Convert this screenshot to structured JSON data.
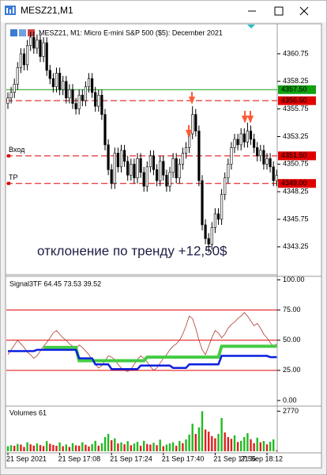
{
  "window": {
    "title": "MESZ21,M1"
  },
  "chart_data": [
    {
      "type": "candlestick",
      "title": "MESZ21, M1:  Micro E-mini S&P 500 ($5): December 2021",
      "annotation": "отклонение по тренду +12,50$",
      "categories": [
        "21 Sep 2021",
        null,
        null,
        null,
        null,
        null,
        null,
        null,
        null,
        null,
        null,
        null,
        null,
        null,
        null,
        null,
        "21 Sep 17:08",
        null,
        null,
        null,
        null,
        null,
        null,
        null,
        null,
        null,
        null,
        null,
        null,
        null,
        null,
        null,
        "21 Sep 17:24",
        null,
        null,
        null,
        null,
        null,
        null,
        null,
        null,
        null,
        null,
        null,
        null,
        null,
        null,
        null,
        "21 Sep 17:40",
        null,
        null,
        null,
        null,
        null,
        null,
        null,
        null,
        null,
        null,
        null,
        null,
        null,
        null,
        null,
        "21 Sep 17:56",
        null,
        null,
        null,
        null,
        null,
        null,
        null,
        null,
        null,
        null,
        null,
        null,
        null,
        null,
        null,
        "21 Sep 18:12",
        null,
        null,
        null
      ],
      "open": [
        4356.25,
        4356.75,
        4357.25,
        4358.0,
        4359.5,
        4360.75,
        4359.75,
        4361.5,
        4362.25,
        4361.25,
        4362.0,
        4360.5,
        4361.75,
        4359.25,
        4358.5,
        4357.75,
        4359.0,
        4357.5,
        4358.25,
        4356.75,
        4357.5,
        4356.25,
        4355.75,
        4357.0,
        4356.5,
        4357.75,
        4358.5,
        4357.25,
        4356.0,
        4357.0,
        4355.25,
        4352.5,
        4350.25,
        4349.0,
        4351.75,
        4350.5,
        4352.0,
        4351.0,
        4349.75,
        4350.75,
        4349.5,
        4351.25,
        4350.0,
        4348.75,
        4350.5,
        4351.5,
        4350.25,
        4349.25,
        4351.0,
        4349.75,
        4348.75,
        4350.0,
        4351.25,
        4349.5,
        4350.75,
        4351.75,
        4352.25,
        4353.5,
        4355.25,
        4353.75,
        4349.25,
        4345.25,
        4344.0,
        4343.5,
        4345.0,
        4346.25,
        4345.75,
        4348.0,
        4349.5,
        4350.75,
        4352.25,
        4353.0,
        4352.5,
        4353.5,
        4352.75,
        4353.75,
        4353.0,
        4352.25,
        4351.5,
        4352.0,
        4350.75,
        4351.25,
        4350.5,
        4349.25
      ],
      "high": [
        4357.25,
        4357.75,
        4358.5,
        4360.0,
        4361.25,
        4361.25,
        4362.0,
        4362.75,
        4362.75,
        4362.5,
        4362.5,
        4362.25,
        4362.25,
        4359.75,
        4359.0,
        4359.5,
        4359.5,
        4358.75,
        4358.75,
        4358.0,
        4358.0,
        4356.75,
        4357.5,
        4357.5,
        4358.25,
        4359.0,
        4359.0,
        4357.75,
        4357.5,
        4357.5,
        4355.75,
        4353.0,
        4350.75,
        4352.25,
        4352.25,
        4352.5,
        4352.5,
        4351.5,
        4351.25,
        4351.25,
        4351.75,
        4351.75,
        4350.5,
        4351.0,
        4352.0,
        4352.0,
        4350.75,
        4351.5,
        4351.5,
        4350.25,
        4350.5,
        4351.75,
        4351.75,
        4351.25,
        4352.25,
        4352.75,
        4354.0,
        4356.0,
        4355.75,
        4354.25,
        4349.75,
        4345.75,
        4344.5,
        4345.5,
        4346.75,
        4346.75,
        4348.5,
        4350.0,
        4351.25,
        4352.75,
        4353.5,
        4353.5,
        4354.0,
        4354.0,
        4354.5,
        4354.25,
        4353.5,
        4352.75,
        4352.5,
        4352.5,
        4351.75,
        4351.75,
        4351.0,
        4350.25
      ],
      "low": [
        4355.75,
        4356.25,
        4356.75,
        4357.5,
        4359.0,
        4359.25,
        4359.25,
        4361.0,
        4360.75,
        4360.75,
        4360.0,
        4360.0,
        4358.75,
        4358.0,
        4357.25,
        4357.25,
        4357.0,
        4357.0,
        4356.25,
        4356.25,
        4355.75,
        4355.25,
        4355.25,
        4356.0,
        4356.0,
        4357.25,
        4356.75,
        4355.5,
        4355.5,
        4354.75,
        4352.0,
        4349.75,
        4348.5,
        4348.5,
        4350.0,
        4350.0,
        4350.5,
        4349.25,
        4349.25,
        4349.0,
        4349.0,
        4349.5,
        4348.25,
        4348.25,
        4350.0,
        4349.75,
        4348.75,
        4348.75,
        4349.25,
        4348.25,
        4348.25,
        4349.5,
        4349.0,
        4349.0,
        4350.25,
        4351.25,
        4351.75,
        4353.0,
        4353.25,
        4348.75,
        4344.75,
        4343.5,
        4342.75,
        4343.0,
        4344.5,
        4345.25,
        4345.25,
        4347.5,
        4349.0,
        4350.25,
        4351.75,
        4352.0,
        4352.0,
        4352.25,
        4352.25,
        4352.5,
        4351.75,
        4351.0,
        4351.0,
        4350.25,
        4350.25,
        4350.0,
        4348.75,
        4348.75
      ],
      "close": [
        4356.75,
        4357.25,
        4358.0,
        4359.5,
        4360.75,
        4359.75,
        4361.5,
        4362.25,
        4361.25,
        4362.0,
        4360.5,
        4361.75,
        4359.25,
        4358.5,
        4357.75,
        4359.0,
        4357.5,
        4358.25,
        4356.75,
        4357.5,
        4356.25,
        4355.75,
        4357.0,
        4356.5,
        4357.75,
        4358.5,
        4357.25,
        4356.0,
        4357.0,
        4355.25,
        4352.5,
        4350.25,
        4349.0,
        4351.75,
        4350.5,
        4352.0,
        4351.0,
        4349.75,
        4350.75,
        4349.5,
        4351.25,
        4350.0,
        4348.75,
        4350.5,
        4351.5,
        4350.25,
        4349.25,
        4351.0,
        4349.75,
        4348.75,
        4350.0,
        4351.25,
        4349.5,
        4350.75,
        4351.75,
        4352.25,
        4353.5,
        4355.25,
        4353.75,
        4349.25,
        4345.25,
        4344.0,
        4343.5,
        4345.0,
        4346.25,
        4345.75,
        4348.0,
        4349.5,
        4350.75,
        4352.25,
        4353.0,
        4352.5,
        4353.5,
        4352.75,
        4353.75,
        4353.0,
        4352.25,
        4351.5,
        4352.0,
        4350.75,
        4351.25,
        4350.5,
        4349.25,
        4349.75
      ],
      "up_color": "#ffffff",
      "down_color": "#000000",
      "wick_color": "#000000",
      "ylim": [
        4340.8,
        4363.4
      ],
      "yticks": [
        4360.75,
        4358.25,
        4355.75,
        4353.25,
        4350.75,
        4348.25,
        4345.75,
        4343.25
      ],
      "levels": [
        {
          "value": 4357.5,
          "label": "4357.50",
          "color": "#10a010",
          "dashed": false
        },
        {
          "value": 4356.5,
          "label": "4356.50",
          "color": "#e00000",
          "dashed": true
        },
        {
          "value": 4351.5,
          "label": "4351.50",
          "name": "Вход",
          "color": "#e00000",
          "dashed": true
        },
        {
          "value": 4349,
          "label": "4349.00",
          "name": "TP",
          "color": "#e00000",
          "dashed": true
        }
      ]
    },
    {
      "type": "line",
      "title": "Signal3TF 64.45 73.53 39.52",
      "series": [
        {
          "color": "#b03a2e",
          "width": 0.8,
          "values": [
            38,
            42,
            46,
            50,
            47,
            44,
            40,
            38,
            35,
            37,
            41,
            45,
            48,
            52,
            56,
            58,
            55,
            52,
            50,
            47,
            45,
            43,
            46,
            44,
            41,
            38,
            34,
            30,
            27,
            29,
            33,
            37,
            36,
            34,
            30,
            27,
            25,
            24,
            26,
            30,
            34,
            37,
            35,
            32,
            28,
            25,
            27,
            31,
            35,
            38,
            42,
            45,
            47,
            50,
            55,
            62,
            70,
            68,
            60,
            50,
            42,
            38,
            45,
            52,
            58,
            56,
            52,
            55,
            60,
            63,
            65,
            68,
            70,
            73,
            70,
            66,
            62,
            64,
            60,
            55,
            52,
            48,
            45,
            47
          ]
        },
        {
          "color": "#44cc44",
          "width": 4,
          "values": [
            null,
            null,
            null,
            null,
            null,
            null,
            null,
            null,
            null,
            null,
            null,
            44,
            44,
            44,
            44,
            44,
            44,
            44,
            44,
            44,
            44,
            44,
            33,
            33,
            33,
            33,
            33,
            33,
            33,
            33,
            33,
            33,
            33,
            33,
            33,
            33,
            33,
            33,
            33,
            33,
            33,
            33,
            33,
            36,
            36,
            36,
            36,
            36,
            36,
            36,
            36,
            36,
            36,
            36,
            36,
            36,
            36,
            36,
            36,
            36,
            36,
            36,
            36,
            36,
            36,
            36,
            45,
            45,
            45,
            45,
            45,
            45,
            45,
            45,
            45,
            45,
            45,
            45,
            45,
            45,
            45,
            45,
            45,
            45
          ]
        },
        {
          "color": "#0a1ee0",
          "width": 2.5,
          "values": [
            41,
            41,
            41,
            41,
            41,
            41,
            41,
            41,
            41,
            42,
            42,
            42,
            42,
            42,
            42,
            42,
            42,
            42,
            42,
            42,
            42,
            42,
            35,
            35,
            35,
            35,
            35,
            30,
            30,
            30,
            30,
            30,
            26,
            26,
            26,
            26,
            26,
            26,
            26,
            26,
            26,
            29,
            29,
            29,
            29,
            29,
            29,
            29,
            29,
            29,
            29,
            27,
            27,
            27,
            27,
            27,
            30,
            30,
            30,
            30,
            30,
            30,
            30,
            30,
            30,
            30,
            37,
            37,
            37,
            37,
            37,
            37,
            37,
            37,
            37,
            37,
            37,
            37,
            37,
            37,
            37,
            36,
            36,
            36
          ]
        }
      ],
      "ylim": [
        -4,
        103
      ],
      "yticks": [
        {
          "value": 100,
          "label": "100.00"
        },
        {
          "value": 75,
          "label": "75.00"
        },
        {
          "value": 50,
          "label": "50.00"
        },
        {
          "value": 25,
          "label": "25.00"
        },
        {
          "value": 0,
          "label": "0.00"
        }
      ],
      "levels": [
        {
          "value": 75,
          "color": "#e00000"
        },
        {
          "value": 50,
          "color": "#e00000"
        },
        {
          "value": 25,
          "color": "#e00000"
        }
      ]
    },
    {
      "type": "bar",
      "title": "Volumes 61",
      "values": [
        350,
        420,
        380,
        510,
        460,
        300,
        620,
        480,
        390,
        540,
        430,
        360,
        700,
        520,
        440,
        380,
        610,
        350,
        470,
        300,
        560,
        410,
        380,
        620,
        450,
        330,
        490,
        720,
        380,
        560,
        980,
        1200,
        760,
        890,
        540,
        610,
        480,
        700,
        420,
        530,
        650,
        380,
        720,
        500,
        460,
        580,
        420,
        800,
        350,
        460,
        540,
        620,
        380,
        710,
        560,
        820,
        1150,
        1900,
        1200,
        1650,
        2770,
        1500,
        1350,
        1050,
        900,
        1200,
        2300,
        1300,
        980,
        860,
        1100,
        640,
        720,
        980,
        1250,
        830,
        560,
        940,
        620,
        710,
        480,
        650,
        820,
        61
      ],
      "up_color": "#22bb22",
      "down_color": "#e02020",
      "ylim": [
        0,
        3010
      ],
      "yticks": [
        2770
      ]
    }
  ]
}
